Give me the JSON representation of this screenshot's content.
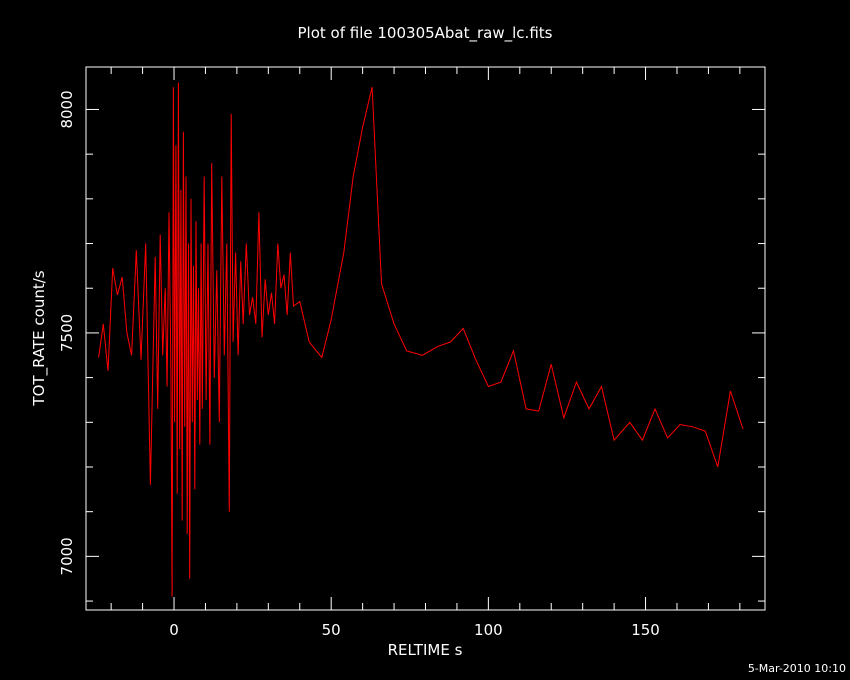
{
  "colors": {
    "background": "#000000",
    "axes": "#ffffff",
    "series": "#ff0000"
  },
  "footer": {
    "timestamp": "5-Mar-2010 10:10"
  },
  "chart_data": {
    "type": "line",
    "title": "Plot of file 100305Abat_raw_lc.fits",
    "xlabel": "RELTIME   s",
    "ylabel": "TOT_RATE   count/s",
    "xlim": [
      -28,
      188
    ],
    "ylim": [
      6880,
      8095
    ],
    "xticks": [
      0,
      50,
      100,
      150
    ],
    "yticks": [
      7000,
      7500,
      8000
    ],
    "xtick_labels": [
      "0",
      "50",
      "100",
      "150"
    ],
    "ytick_labels": [
      "7000",
      "7500",
      "8000"
    ],
    "grid": false,
    "series": [
      {
        "x": [
          -24,
          -22.5,
          -21,
          -19.5,
          -18,
          -16.5,
          -15,
          -13.5,
          -12,
          -10.5,
          -9,
          -7.5,
          -6,
          -5.2,
          -4.4,
          -3.6,
          -2.8,
          -2.2,
          -1.6,
          -1,
          -0.6,
          -0.2,
          0.2,
          0.6,
          1,
          1.4,
          1.8,
          2.2,
          2.6,
          3,
          3.4,
          3.8,
          4.2,
          4.6,
          5,
          5.4,
          5.8,
          6.2,
          6.6,
          7,
          7.4,
          7.8,
          8.2,
          8.6,
          9,
          9.6,
          10.2,
          10.8,
          11.4,
          12,
          12.8,
          13.6,
          14.4,
          15.2,
          16,
          16.8,
          17.6,
          18.2,
          18.8,
          19.6,
          20.4,
          21.2,
          22,
          23,
          24,
          25,
          26,
          27,
          28,
          29,
          30,
          31,
          32,
          33,
          34,
          35,
          36,
          37,
          38,
          40,
          43,
          47,
          50,
          54,
          57,
          60,
          63,
          66,
          70,
          74,
          79,
          84,
          88,
          92,
          96,
          100,
          104,
          108,
          112,
          116,
          120,
          124,
          128,
          132,
          136,
          140,
          145,
          149,
          153,
          157,
          161,
          165,
          169,
          173,
          177,
          181
        ],
        "y": [
          7445,
          7520,
          7415,
          7645,
          7585,
          7625,
          7500,
          7450,
          7685,
          7440,
          7700,
          7160,
          7670,
          7330,
          7720,
          7450,
          7600,
          7380,
          7770,
          7420,
          6910,
          8050,
          7300,
          7920,
          7140,
          8060,
          7240,
          7820,
          7080,
          7950,
          7290,
          7850,
          7050,
          7700,
          6950,
          7800,
          7300,
          7650,
          7150,
          7750,
          7350,
          7600,
          7250,
          7700,
          7330,
          7850,
          7350,
          7700,
          7250,
          7880,
          7400,
          7640,
          7300,
          7850,
          7450,
          7700,
          7100,
          7990,
          7480,
          7680,
          7450,
          7660,
          7520,
          7700,
          7540,
          7580,
          7520,
          7770,
          7490,
          7620,
          7540,
          7590,
          7520,
          7700,
          7600,
          7630,
          7540,
          7680,
          7560,
          7570,
          7480,
          7445,
          7530,
          7680,
          7850,
          7960,
          8050,
          7610,
          7520,
          7460,
          7450,
          7470,
          7480,
          7510,
          7440,
          7380,
          7390,
          7460,
          7330,
          7325,
          7430,
          7310,
          7390,
          7330,
          7380,
          7260,
          7300,
          7260,
          7330,
          7265,
          7295,
          7290,
          7280,
          7200,
          7370,
          7285
        ]
      }
    ]
  }
}
